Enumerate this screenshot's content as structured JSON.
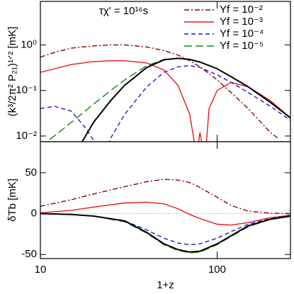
{
  "chart_data": [
    {
      "type": "line",
      "annotation": "τχ' = 10¹⁶s",
      "ylabel": "(k³/2π² P₂₁)¹ᐟ² [mK]",
      "xlim": [
        10,
        260
      ],
      "xscale": "log",
      "ylim": [
        0.0075,
        9
      ],
      "yscale": "log",
      "yticks": [
        {
          "value": 0.01,
          "label": "10⁻²"
        },
        {
          "value": 0.1,
          "label": "10⁻¹"
        },
        {
          "value": 1,
          "label": "10⁰"
        }
      ],
      "legend": "upper right",
      "series": [
        {
          "name": "Yf = 10⁻²",
          "color": "#8b0000",
          "dash": "dashdot",
          "x": [
            10,
            12,
            15,
            20,
            25,
            30,
            40,
            50,
            60,
            70,
            80,
            100,
            120,
            150,
            200,
            220
          ],
          "values": [
            0.54,
            0.68,
            0.85,
            0.95,
            1.0,
            1.0,
            0.9,
            0.75,
            0.6,
            0.45,
            0.33,
            0.17,
            0.09,
            0.04,
            0.012,
            0.009
          ]
        },
        {
          "name": "Yf = 10⁻³",
          "color": "#e41a1c",
          "dash": "solid",
          "x": [
            10,
            12,
            15,
            20,
            25,
            30,
            40,
            50,
            60,
            70,
            74,
            76,
            80,
            84,
            86,
            90,
            100,
            120,
            150,
            200,
            260
          ],
          "values": [
            0.25,
            0.3,
            0.37,
            0.43,
            0.45,
            0.45,
            0.4,
            0.28,
            0.13,
            0.03,
            0.008,
            0.003,
            0.012,
            0.004,
            0.004,
            0.04,
            0.1,
            0.15,
            0.12,
            0.06,
            0.025
          ]
        },
        {
          "name": "Yf = 10⁻⁴",
          "color": "#1a1ae0",
          "dash": "dashed",
          "x": [
            10,
            12,
            15,
            18,
            20,
            22,
            23,
            25,
            30,
            40,
            50,
            60,
            70,
            80,
            100,
            120,
            150,
            200,
            260
          ],
          "values": [
            0.04,
            0.045,
            0.035,
            0.015,
            0.008,
            0.003,
            0.004,
            0.009,
            0.03,
            0.12,
            0.25,
            0.33,
            0.35,
            0.32,
            0.22,
            0.15,
            0.09,
            0.045,
            0.022
          ]
        },
        {
          "name": "Yf = 10⁻⁵",
          "color": "#118811",
          "dash": "longdash",
          "x": [
            10,
            12,
            15,
            20,
            25,
            30,
            40,
            50,
            60,
            70,
            80,
            100,
            120,
            150,
            200,
            260
          ],
          "values": [
            0.006,
            0.01,
            0.02,
            0.05,
            0.1,
            0.17,
            0.35,
            0.48,
            0.5,
            0.47,
            0.42,
            0.3,
            0.2,
            0.12,
            0.055,
            0.025
          ]
        },
        {
          "color": "#000000",
          "dash": "solid",
          "x": [
            15,
            18,
            20,
            25,
            30,
            40,
            50,
            60,
            70,
            80,
            100,
            120,
            150,
            200,
            260
          ],
          "values": [
            0.003,
            0.01,
            0.02,
            0.06,
            0.13,
            0.32,
            0.47,
            0.51,
            0.48,
            0.42,
            0.3,
            0.2,
            0.12,
            0.055,
            0.025
          ]
        }
      ]
    },
    {
      "type": "line",
      "ylabel": "δTb [mK]",
      "xlabel": "1+z",
      "xlim": [
        10,
        260
      ],
      "xscale": "log",
      "xticks": [
        10,
        100
      ],
      "ylim": [
        -55,
        88
      ],
      "yticks": [
        -50,
        0,
        50
      ],
      "hline": 0,
      "x": [
        10,
        15,
        20,
        30,
        40,
        50,
        60,
        70,
        80,
        100,
        120,
        150,
        200,
        260
      ],
      "series": [
        {
          "color": "#8b0000",
          "dash": "dashdot",
          "values": [
            9,
            17,
            24,
            33,
            39,
            42,
            41,
            38,
            32,
            20,
            10,
            3,
            0.5,
            0
          ]
        },
        {
          "color": "#e41a1c",
          "dash": "solid",
          "values": [
            1,
            4,
            8,
            13,
            14,
            12,
            6,
            -1,
            -6,
            -13,
            -14,
            -11,
            -5,
            -2
          ]
        },
        {
          "color": "#1a1ae0",
          "dash": "dashed",
          "values": [
            0,
            -1,
            -3,
            -9,
            -20,
            -30,
            -36,
            -38,
            -37,
            -30,
            -22,
            -13,
            -6,
            -2
          ]
        },
        {
          "color": "#118811",
          "dash": "longdash",
          "values": [
            0,
            -1,
            -3,
            -10,
            -24,
            -38,
            -45,
            -48,
            -47,
            -38,
            -28,
            -16,
            -7,
            -3
          ]
        },
        {
          "color": "#000000",
          "dash": "solid",
          "values": [
            0,
            -1,
            -3,
            -9,
            -23,
            -37,
            -44,
            -47,
            -46,
            -37,
            -27,
            -15,
            -7,
            -3
          ]
        }
      ]
    }
  ]
}
